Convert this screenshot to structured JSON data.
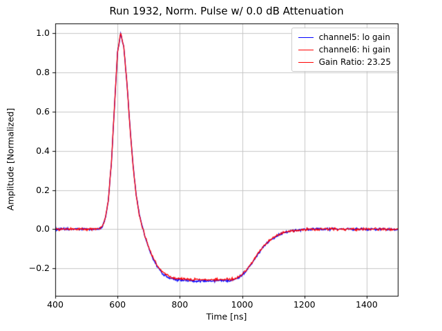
{
  "figure": {
    "title": "Run 1932, Norm. Pulse w/ 0.0 dB Attenuation",
    "xlabel": "Time [ns]",
    "ylabel": "Amplitude [Normalized]"
  },
  "colors": {
    "background": "#ffffff",
    "grid": "#c6c6c6",
    "spine": "#000000",
    "channel5": "#0000ff",
    "channel6": "#ff0000"
  },
  "chart_data": {
    "type": "line",
    "title": "Run 1932, Norm. Pulse w/ 0.0 dB Attenuation",
    "xlabel": "Time [ns]",
    "ylabel": "Amplitude [Normalized]",
    "xlim": [
      400,
      1500
    ],
    "ylim": [
      -0.34,
      1.05
    ],
    "xticks": [
      400,
      600,
      800,
      1000,
      1200,
      1400
    ],
    "yticks": [
      -0.2,
      0.0,
      0.2,
      0.4,
      0.6,
      0.8,
      1.0
    ],
    "grid": true,
    "legend_position": "upper right",
    "noise_amplitude": 0.005,
    "x": [
      400,
      410,
      420,
      430,
      440,
      450,
      460,
      470,
      480,
      490,
      500,
      510,
      520,
      530,
      540,
      550,
      560,
      570,
      580,
      590,
      600,
      610,
      620,
      630,
      640,
      650,
      660,
      670,
      680,
      690,
      700,
      710,
      720,
      730,
      740,
      750,
      760,
      770,
      780,
      790,
      800,
      810,
      820,
      830,
      840,
      850,
      860,
      870,
      880,
      890,
      900,
      910,
      920,
      930,
      940,
      950,
      960,
      970,
      980,
      990,
      1000,
      1010,
      1020,
      1030,
      1040,
      1050,
      1060,
      1070,
      1080,
      1090,
      1100,
      1110,
      1120,
      1130,
      1140,
      1150,
      1160,
      1170,
      1180,
      1190,
      1200,
      1210,
      1220,
      1230,
      1240,
      1250,
      1260,
      1270,
      1280,
      1290,
      1300,
      1310,
      1320,
      1330,
      1340,
      1350,
      1360,
      1370,
      1380,
      1390,
      1400,
      1410,
      1420,
      1430,
      1440,
      1450,
      1460,
      1470,
      1480,
      1490,
      1500
    ],
    "series": [
      {
        "name": "channel5: lo gain",
        "color": "#0000ff",
        "values": [
          0,
          0,
          0,
          0,
          0,
          0,
          0,
          0,
          0,
          0,
          0,
          0,
          0,
          0,
          0.002,
          0.01,
          0.05,
          0.14,
          0.33,
          0.62,
          0.9,
          1.0,
          0.93,
          0.75,
          0.52,
          0.325,
          0.175,
          0.075,
          0.012,
          -0.048,
          -0.095,
          -0.136,
          -0.17,
          -0.197,
          -0.218,
          -0.233,
          -0.243,
          -0.25,
          -0.255,
          -0.258,
          -0.26,
          -0.261,
          -0.262,
          -0.263,
          -0.263,
          -0.263,
          -0.264,
          -0.264,
          -0.264,
          -0.264,
          -0.264,
          -0.264,
          -0.263,
          -0.263,
          -0.262,
          -0.261,
          -0.26,
          -0.257,
          -0.252,
          -0.245,
          -0.234,
          -0.218,
          -0.198,
          -0.175,
          -0.152,
          -0.129,
          -0.108,
          -0.088,
          -0.071,
          -0.057,
          -0.045,
          -0.034,
          -0.026,
          -0.019,
          -0.014,
          -0.011,
          -0.008,
          -0.006,
          -0.004,
          -0.003,
          -0.002,
          -0.002,
          -0.001,
          -0.001,
          0,
          0,
          0,
          0,
          0,
          0,
          0,
          0,
          0,
          0,
          0,
          0,
          0,
          0,
          0,
          0,
          0,
          0,
          0,
          0,
          0,
          0,
          0,
          0,
          0,
          0,
          0
        ]
      },
      {
        "name": "channel6: hi gain",
        "color": "#ff0000",
        "values": [
          0,
          0,
          0,
          0,
          0,
          0,
          0,
          0,
          0,
          0,
          0,
          0,
          0,
          0,
          0.002,
          0.01,
          0.05,
          0.14,
          0.33,
          0.62,
          0.9,
          1.0,
          0.93,
          0.75,
          0.52,
          0.32,
          0.17,
          0.07,
          0.01,
          -0.045,
          -0.09,
          -0.13,
          -0.163,
          -0.19,
          -0.21,
          -0.225,
          -0.236,
          -0.243,
          -0.248,
          -0.251,
          -0.253,
          -0.254,
          -0.255,
          -0.256,
          -0.257,
          -0.257,
          -0.258,
          -0.258,
          -0.258,
          -0.258,
          -0.258,
          -0.258,
          -0.258,
          -0.257,
          -0.257,
          -0.256,
          -0.255,
          -0.253,
          -0.249,
          -0.242,
          -0.231,
          -0.215,
          -0.196,
          -0.173,
          -0.15,
          -0.127,
          -0.106,
          -0.087,
          -0.07,
          -0.056,
          -0.044,
          -0.034,
          -0.026,
          -0.019,
          -0.014,
          -0.011,
          -0.008,
          -0.006,
          -0.004,
          -0.003,
          -0.002,
          -0.002,
          -0.001,
          -0.001,
          0,
          0,
          0,
          0,
          0,
          0,
          0,
          0,
          0,
          0,
          0,
          0,
          0,
          0,
          0,
          0,
          0,
          0,
          0,
          0,
          0,
          0,
          0,
          0,
          0,
          0,
          0
        ]
      }
    ],
    "legend": [
      {
        "label": "channel5: lo gain",
        "color": "#0000ff"
      },
      {
        "label": "channel6: hi gain",
        "color": "#ff0000"
      },
      {
        "label": "Gain Ratio: 23.25",
        "color": "#ff0000"
      }
    ]
  }
}
